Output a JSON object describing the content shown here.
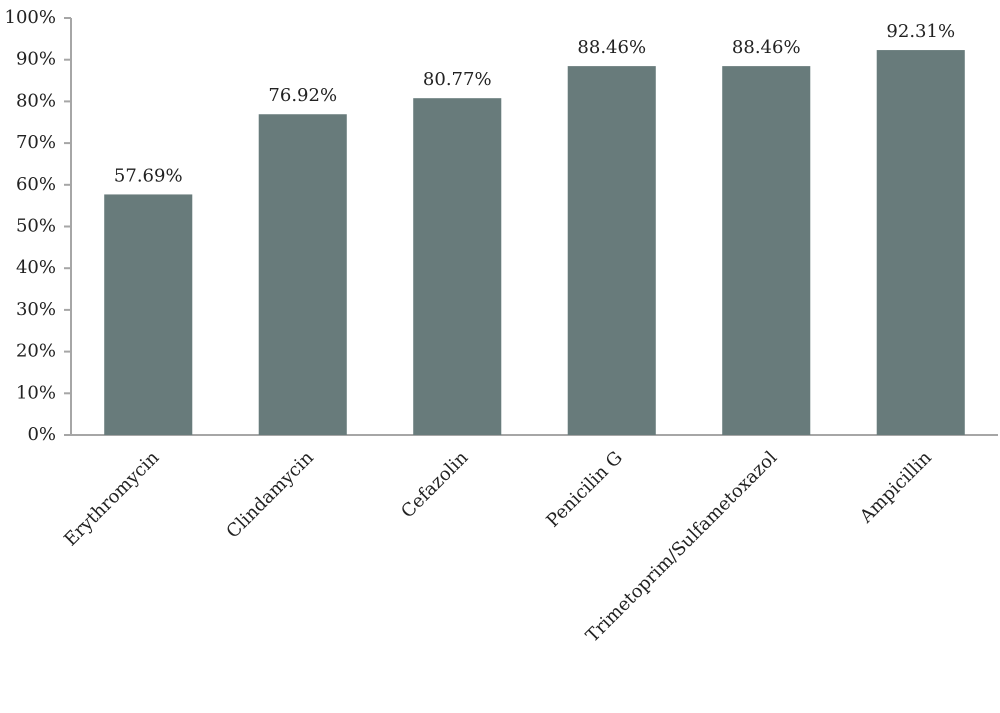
{
  "chart_data": {
    "type": "bar",
    "categories": [
      "Erythromycin",
      "Clindamycin",
      "Cefazolin",
      "Penicilin G",
      "Trimetoprim/Sulfametoxazol",
      "Ampicillin"
    ],
    "values": [
      57.69,
      76.92,
      80.77,
      88.46,
      88.46,
      92.31
    ],
    "value_labels": [
      "57.69%",
      "76.92%",
      "80.77%",
      "88.46%",
      "88.46%",
      "92.31%"
    ],
    "color": "#687b7b",
    "ylim": [
      0,
      100
    ],
    "yticks": [
      {
        "value": 0,
        "label": "0%"
      },
      {
        "value": 10,
        "label": "10%"
      },
      {
        "value": 20,
        "label": "20%"
      },
      {
        "value": 30,
        "label": "30%"
      },
      {
        "value": 40,
        "label": "40%"
      },
      {
        "value": 50,
        "label": "50%"
      },
      {
        "value": 60,
        "label": "60%"
      },
      {
        "value": 70,
        "label": "70%"
      },
      {
        "value": 80,
        "label": "80%"
      },
      {
        "value": 90,
        "label": "90%"
      },
      {
        "value": 100,
        "label": "100%"
      }
    ],
    "grid": false
  }
}
